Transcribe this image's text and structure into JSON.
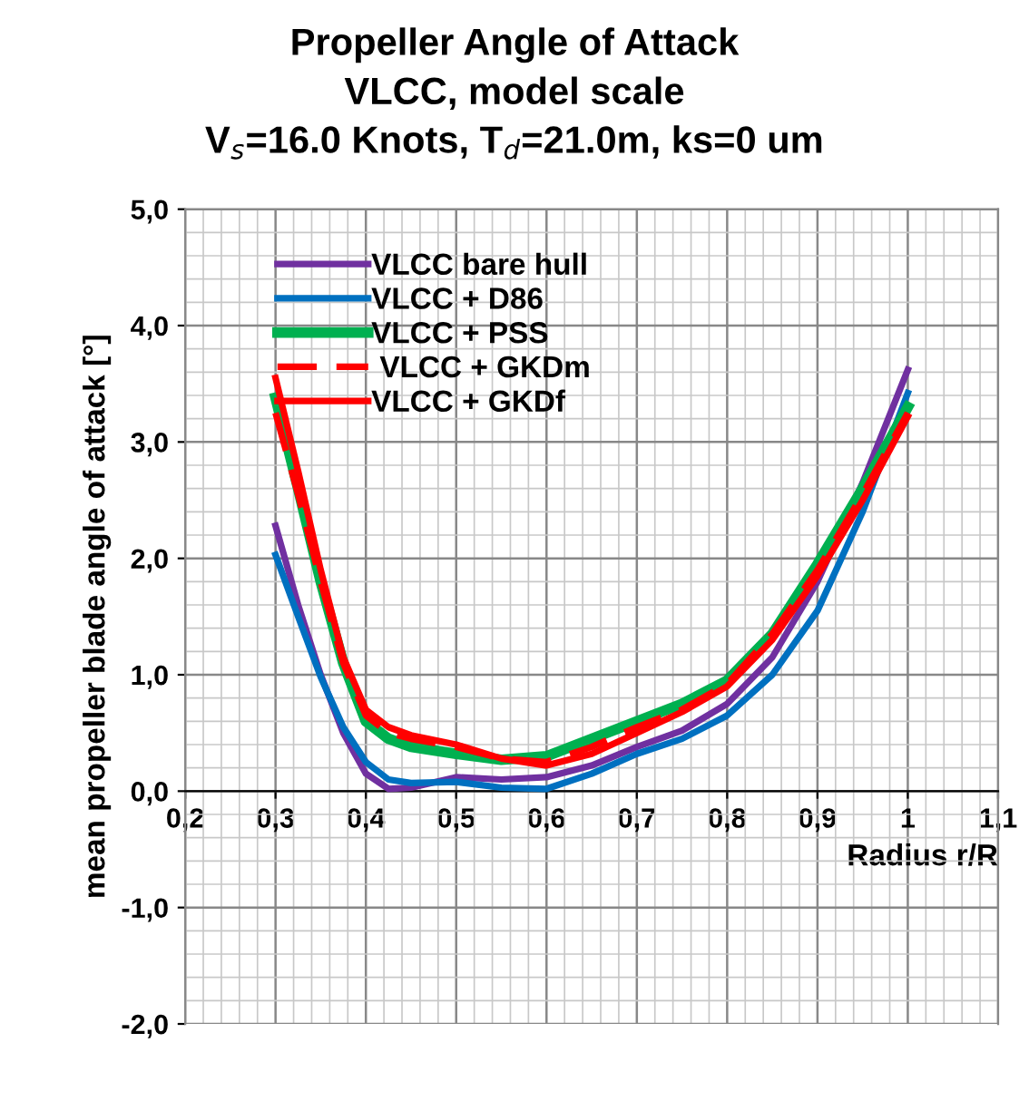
{
  "chart_data": {
    "type": "line",
    "title": "Propeller Angle of Attack\nVLCC, model scale\nV$_{s}$=16.0 Knots, T$_{d}$=21.0m, ks=0 um",
    "xlabel": "Radius r/R",
    "ylabel": "mean propeller blade angle of attack [°]",
    "x": [
      0.3,
      0.325,
      0.35,
      0.375,
      0.4,
      0.425,
      0.45,
      0.5,
      0.55,
      0.6,
      0.65,
      0.7,
      0.75,
      0.8,
      0.85,
      0.9,
      0.95,
      1.0
    ],
    "series": [
      {
        "name": "VLCC bare hull",
        "color": "#7030a0",
        "values": [
          2.28,
          1.6,
          1.0,
          0.5,
          0.15,
          0.02,
          0.03,
          0.12,
          0.1,
          0.12,
          0.22,
          0.38,
          0.52,
          0.75,
          1.15,
          1.8,
          2.65,
          3.62
        ]
      },
      {
        "name": "VLCC + D86",
        "color": "#0070c0",
        "values": [
          2.03,
          1.5,
          0.98,
          0.55,
          0.25,
          0.1,
          0.07,
          0.08,
          0.03,
          0.02,
          0.15,
          0.32,
          0.45,
          0.65,
          1.0,
          1.55,
          2.4,
          3.42
        ]
      },
      {
        "name": "VLCC + PSS",
        "color": "#00b050",
        "values": [
          3.38,
          2.6,
          1.8,
          1.1,
          0.6,
          0.45,
          0.38,
          0.32,
          0.27,
          0.3,
          0.45,
          0.6,
          0.75,
          0.95,
          1.35,
          1.95,
          2.6,
          3.3
        ]
      },
      {
        "name": " VLCC + GKDm",
        "color": "#ff0000",
        "line_style": "dashed",
        "values": [
          3.25,
          2.55,
          1.8,
          1.1,
          0.65,
          0.5,
          0.45,
          0.38,
          0.28,
          0.25,
          0.38,
          0.55,
          0.7,
          0.92,
          1.35,
          1.9,
          2.55,
          3.25
        ]
      },
      {
        "name": "VLCC + GKDf",
        "color": "#ff0000",
        "values": [
          3.55,
          2.75,
          1.9,
          1.15,
          0.7,
          0.55,
          0.48,
          0.4,
          0.28,
          0.22,
          0.32,
          0.5,
          0.68,
          0.9,
          1.3,
          1.85,
          2.5,
          3.22
        ]
      }
    ],
    "xlim": [
      0.2,
      1.1
    ],
    "xticks": [
      {
        "value": 0.2,
        "label": "0,2"
      },
      {
        "value": 0.3,
        "label": "0,3"
      },
      {
        "value": 0.4,
        "label": "0,4"
      },
      {
        "value": 0.5,
        "label": "0,5"
      },
      {
        "value": 0.6,
        "label": "0,6"
      },
      {
        "value": 0.7,
        "label": "0,7"
      },
      {
        "value": 0.8,
        "label": "0,8"
      },
      {
        "value": 0.9,
        "label": "0,9"
      },
      {
        "value": 1.0,
        "label": "1"
      },
      {
        "value": 1.1,
        "label": "1,1"
      }
    ],
    "ylim": [
      -2,
      5
    ],
    "yticks": [
      {
        "value": -2,
        "label": "-2,0"
      },
      {
        "value": -1,
        "label": "-1,0"
      },
      {
        "value": 0,
        "label": "0,0"
      },
      {
        "value": 1,
        "label": "1,0"
      },
      {
        "value": 2,
        "label": "2,0"
      },
      {
        "value": 3,
        "label": "3,0"
      },
      {
        "value": 4,
        "label": "4,0"
      },
      {
        "value": 5,
        "label": "5,0"
      }
    ],
    "grid": true,
    "legend": "top left",
    "marker": "none",
    "line_style": "solid"
  }
}
